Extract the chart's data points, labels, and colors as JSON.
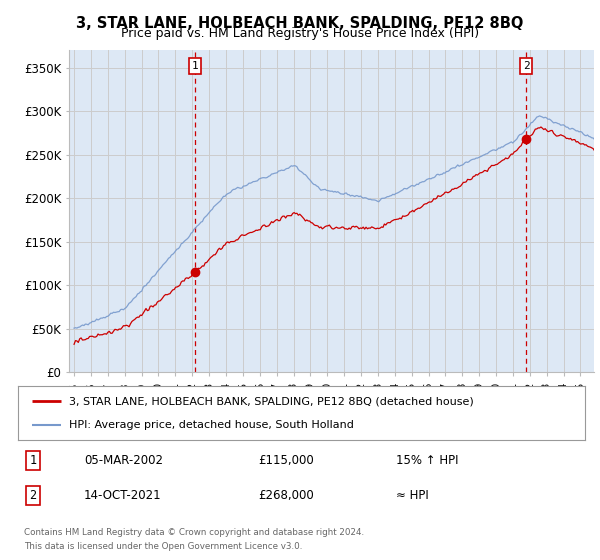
{
  "title": "3, STAR LANE, HOLBEACH BANK, SPALDING, PE12 8BQ",
  "subtitle": "Price paid vs. HM Land Registry's House Price Index (HPI)",
  "ylim": [
    0,
    370000
  ],
  "yticks": [
    0,
    50000,
    100000,
    150000,
    200000,
    250000,
    300000,
    350000
  ],
  "ytick_labels": [
    "£0",
    "£50K",
    "£100K",
    "£150K",
    "£200K",
    "£250K",
    "£300K",
    "£350K"
  ],
  "sale1_x": 2002.17,
  "sale1_price": 115000,
  "sale2_x": 2021.78,
  "sale2_price": 268000,
  "legend_line1": "3, STAR LANE, HOLBEACH BANK, SPALDING, PE12 8BQ (detached house)",
  "legend_line2": "HPI: Average price, detached house, South Holland",
  "annotation1_date": "05-MAR-2002",
  "annotation1_price": "£115,000",
  "annotation1_hpi": "15% ↑ HPI",
  "annotation2_date": "14-OCT-2021",
  "annotation2_price": "£268,000",
  "annotation2_hpi": "≈ HPI",
  "footer": "Contains HM Land Registry data © Crown copyright and database right 2024.\nThis data is licensed under the Open Government Licence v3.0.",
  "line_color_red": "#cc0000",
  "line_color_blue": "#7799cc",
  "fill_color_blue": "#dde8f5",
  "vline_color": "#cc0000",
  "bg_color": "#ffffff",
  "grid_color": "#cccccc"
}
